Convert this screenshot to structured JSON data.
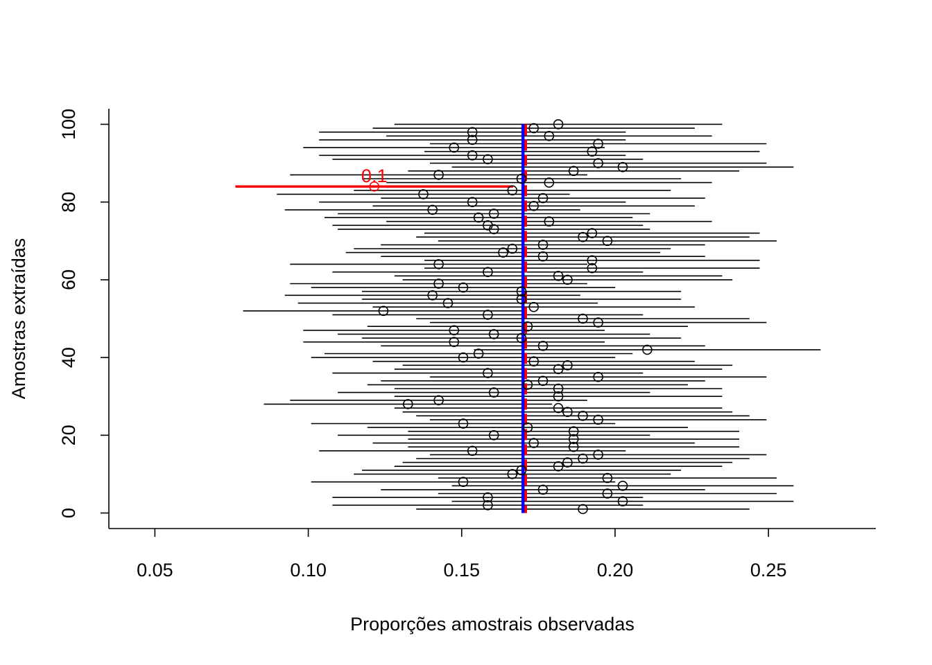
{
  "chart_data": {
    "type": "confidence-interval-plot",
    "title": "",
    "xlabel": "Proporções amostrais observadas",
    "ylabel": "Amostras extraídas",
    "xlim": [
      0.035,
      0.285
    ],
    "ylim": [
      -4,
      104
    ],
    "x_ticks": [
      0.05,
      0.1,
      0.15,
      0.2,
      0.25
    ],
    "x_tick_labels": [
      "0.05",
      "0.10",
      "0.15",
      "0.20",
      "0.25"
    ],
    "y_ticks": [
      0,
      20,
      40,
      60,
      80,
      100
    ],
    "y_tick_labels": [
      "0",
      "20",
      "40",
      "60",
      "80",
      "100"
    ],
    "grid": false,
    "true_proportion": 0.17,
    "colors": {
      "interval": "#000000",
      "miss": "#ff0000",
      "reference": "#0000ff",
      "mean_dash": "#ff0000"
    },
    "miss_label": "0.1",
    "samples": [
      {
        "id": 1,
        "p": 0.1895
      },
      {
        "id": 2,
        "p": 0.1585
      },
      {
        "id": 3,
        "p": 0.2025
      },
      {
        "id": 4,
        "p": 0.1585
      },
      {
        "id": 5,
        "p": 0.1975
      },
      {
        "id": 6,
        "p": 0.1765
      },
      {
        "id": 7,
        "p": 0.2025
      },
      {
        "id": 8,
        "p": 0.1505
      },
      {
        "id": 9,
        "p": 0.1975
      },
      {
        "id": 10,
        "p": 0.1665
      },
      {
        "id": 11,
        "p": 0.1695
      },
      {
        "id": 12,
        "p": 0.1815
      },
      {
        "id": 13,
        "p": 0.1845
      },
      {
        "id": 14,
        "p": 0.1895
      },
      {
        "id": 15,
        "p": 0.1945
      },
      {
        "id": 16,
        "p": 0.1535
      },
      {
        "id": 17,
        "p": 0.1865
      },
      {
        "id": 18,
        "p": 0.1735
      },
      {
        "id": 19,
        "p": 0.1865
      },
      {
        "id": 20,
        "p": 0.1605
      },
      {
        "id": 21,
        "p": 0.1865
      },
      {
        "id": 22,
        "p": 0.1715
      },
      {
        "id": 23,
        "p": 0.1505
      },
      {
        "id": 24,
        "p": 0.1945
      },
      {
        "id": 25,
        "p": 0.1895
      },
      {
        "id": 26,
        "p": 0.1845
      },
      {
        "id": 27,
        "p": 0.1815
      },
      {
        "id": 28,
        "p": 0.1325,
        "miss": true
      },
      {
        "id": 29,
        "p": 0.1425
      },
      {
        "id": 30,
        "p": 0.1815
      },
      {
        "id": 31,
        "p": 0.1605
      },
      {
        "id": 32,
        "p": 0.1815
      },
      {
        "id": 33,
        "p": 0.1715
      },
      {
        "id": 34,
        "p": 0.1765
      },
      {
        "id": 35,
        "p": 0.1945
      },
      {
        "id": 36,
        "p": 0.1585
      },
      {
        "id": 37,
        "p": 0.1815
      },
      {
        "id": 38,
        "p": 0.1845
      },
      {
        "id": 39,
        "p": 0.1735
      },
      {
        "id": 40,
        "p": 0.1505
      },
      {
        "id": 41,
        "p": 0.1555
      },
      {
        "id": 42,
        "p": 0.2105
      },
      {
        "id": 43,
        "p": 0.1765
      },
      {
        "id": 44,
        "p": 0.1475
      },
      {
        "id": 45,
        "p": 0.1695
      },
      {
        "id": 46,
        "p": 0.1605
      },
      {
        "id": 47,
        "p": 0.1475
      },
      {
        "id": 48,
        "p": 0.1715
      },
      {
        "id": 49,
        "p": 0.1945
      },
      {
        "id": 50,
        "p": 0.1895
      },
      {
        "id": 51,
        "p": 0.1585
      },
      {
        "id": 52,
        "p": 0.1245,
        "miss": true
      },
      {
        "id": 53,
        "p": 0.1735
      },
      {
        "id": 54,
        "p": 0.1455
      },
      {
        "id": 55,
        "p": 0.1695
      },
      {
        "id": 56,
        "p": 0.1405
      },
      {
        "id": 57,
        "p": 0.1695
      },
      {
        "id": 58,
        "p": 0.1505
      },
      {
        "id": 59,
        "p": 0.1425
      },
      {
        "id": 60,
        "p": 0.1845
      },
      {
        "id": 61,
        "p": 0.1815
      },
      {
        "id": 62,
        "p": 0.1585
      },
      {
        "id": 63,
        "p": 0.1925
      },
      {
        "id": 64,
        "p": 0.1425
      },
      {
        "id": 65,
        "p": 0.1925
      },
      {
        "id": 66,
        "p": 0.1765
      },
      {
        "id": 67,
        "p": 0.1635
      },
      {
        "id": 68,
        "p": 0.1665
      },
      {
        "id": 69,
        "p": 0.1765
      },
      {
        "id": 70,
        "p": 0.1975
      },
      {
        "id": 71,
        "p": 0.1895
      },
      {
        "id": 72,
        "p": 0.1925
      },
      {
        "id": 73,
        "p": 0.1605
      },
      {
        "id": 74,
        "p": 0.1585
      },
      {
        "id": 75,
        "p": 0.1785
      },
      {
        "id": 76,
        "p": 0.1555
      },
      {
        "id": 77,
        "p": 0.1605
      },
      {
        "id": 78,
        "p": 0.1405
      },
      {
        "id": 79,
        "p": 0.1735
      },
      {
        "id": 80,
        "p": 0.1535
      },
      {
        "id": 81,
        "p": 0.1765
      },
      {
        "id": 82,
        "p": 0.1375
      },
      {
        "id": 83,
        "p": 0.1665
      },
      {
        "id": 84,
        "p": 0.1215,
        "miss": true
      },
      {
        "id": 85,
        "p": 0.1785
      },
      {
        "id": 86,
        "p": 0.1695
      },
      {
        "id": 87,
        "p": 0.1425
      },
      {
        "id": 88,
        "p": 0.1865
      },
      {
        "id": 89,
        "p": 0.2025
      },
      {
        "id": 90,
        "p": 0.1945
      },
      {
        "id": 91,
        "p": 0.1585
      },
      {
        "id": 92,
        "p": 0.1535
      },
      {
        "id": 93,
        "p": 0.1925
      },
      {
        "id": 94,
        "p": 0.1475
      },
      {
        "id": 95,
        "p": 0.1945
      },
      {
        "id": 96,
        "p": 0.1535
      },
      {
        "id": 97,
        "p": 0.1785
      },
      {
        "id": 98,
        "p": 0.1535
      },
      {
        "id": 99,
        "p": 0.1735
      },
      {
        "id": 100,
        "p": 0.1815
      }
    ]
  }
}
